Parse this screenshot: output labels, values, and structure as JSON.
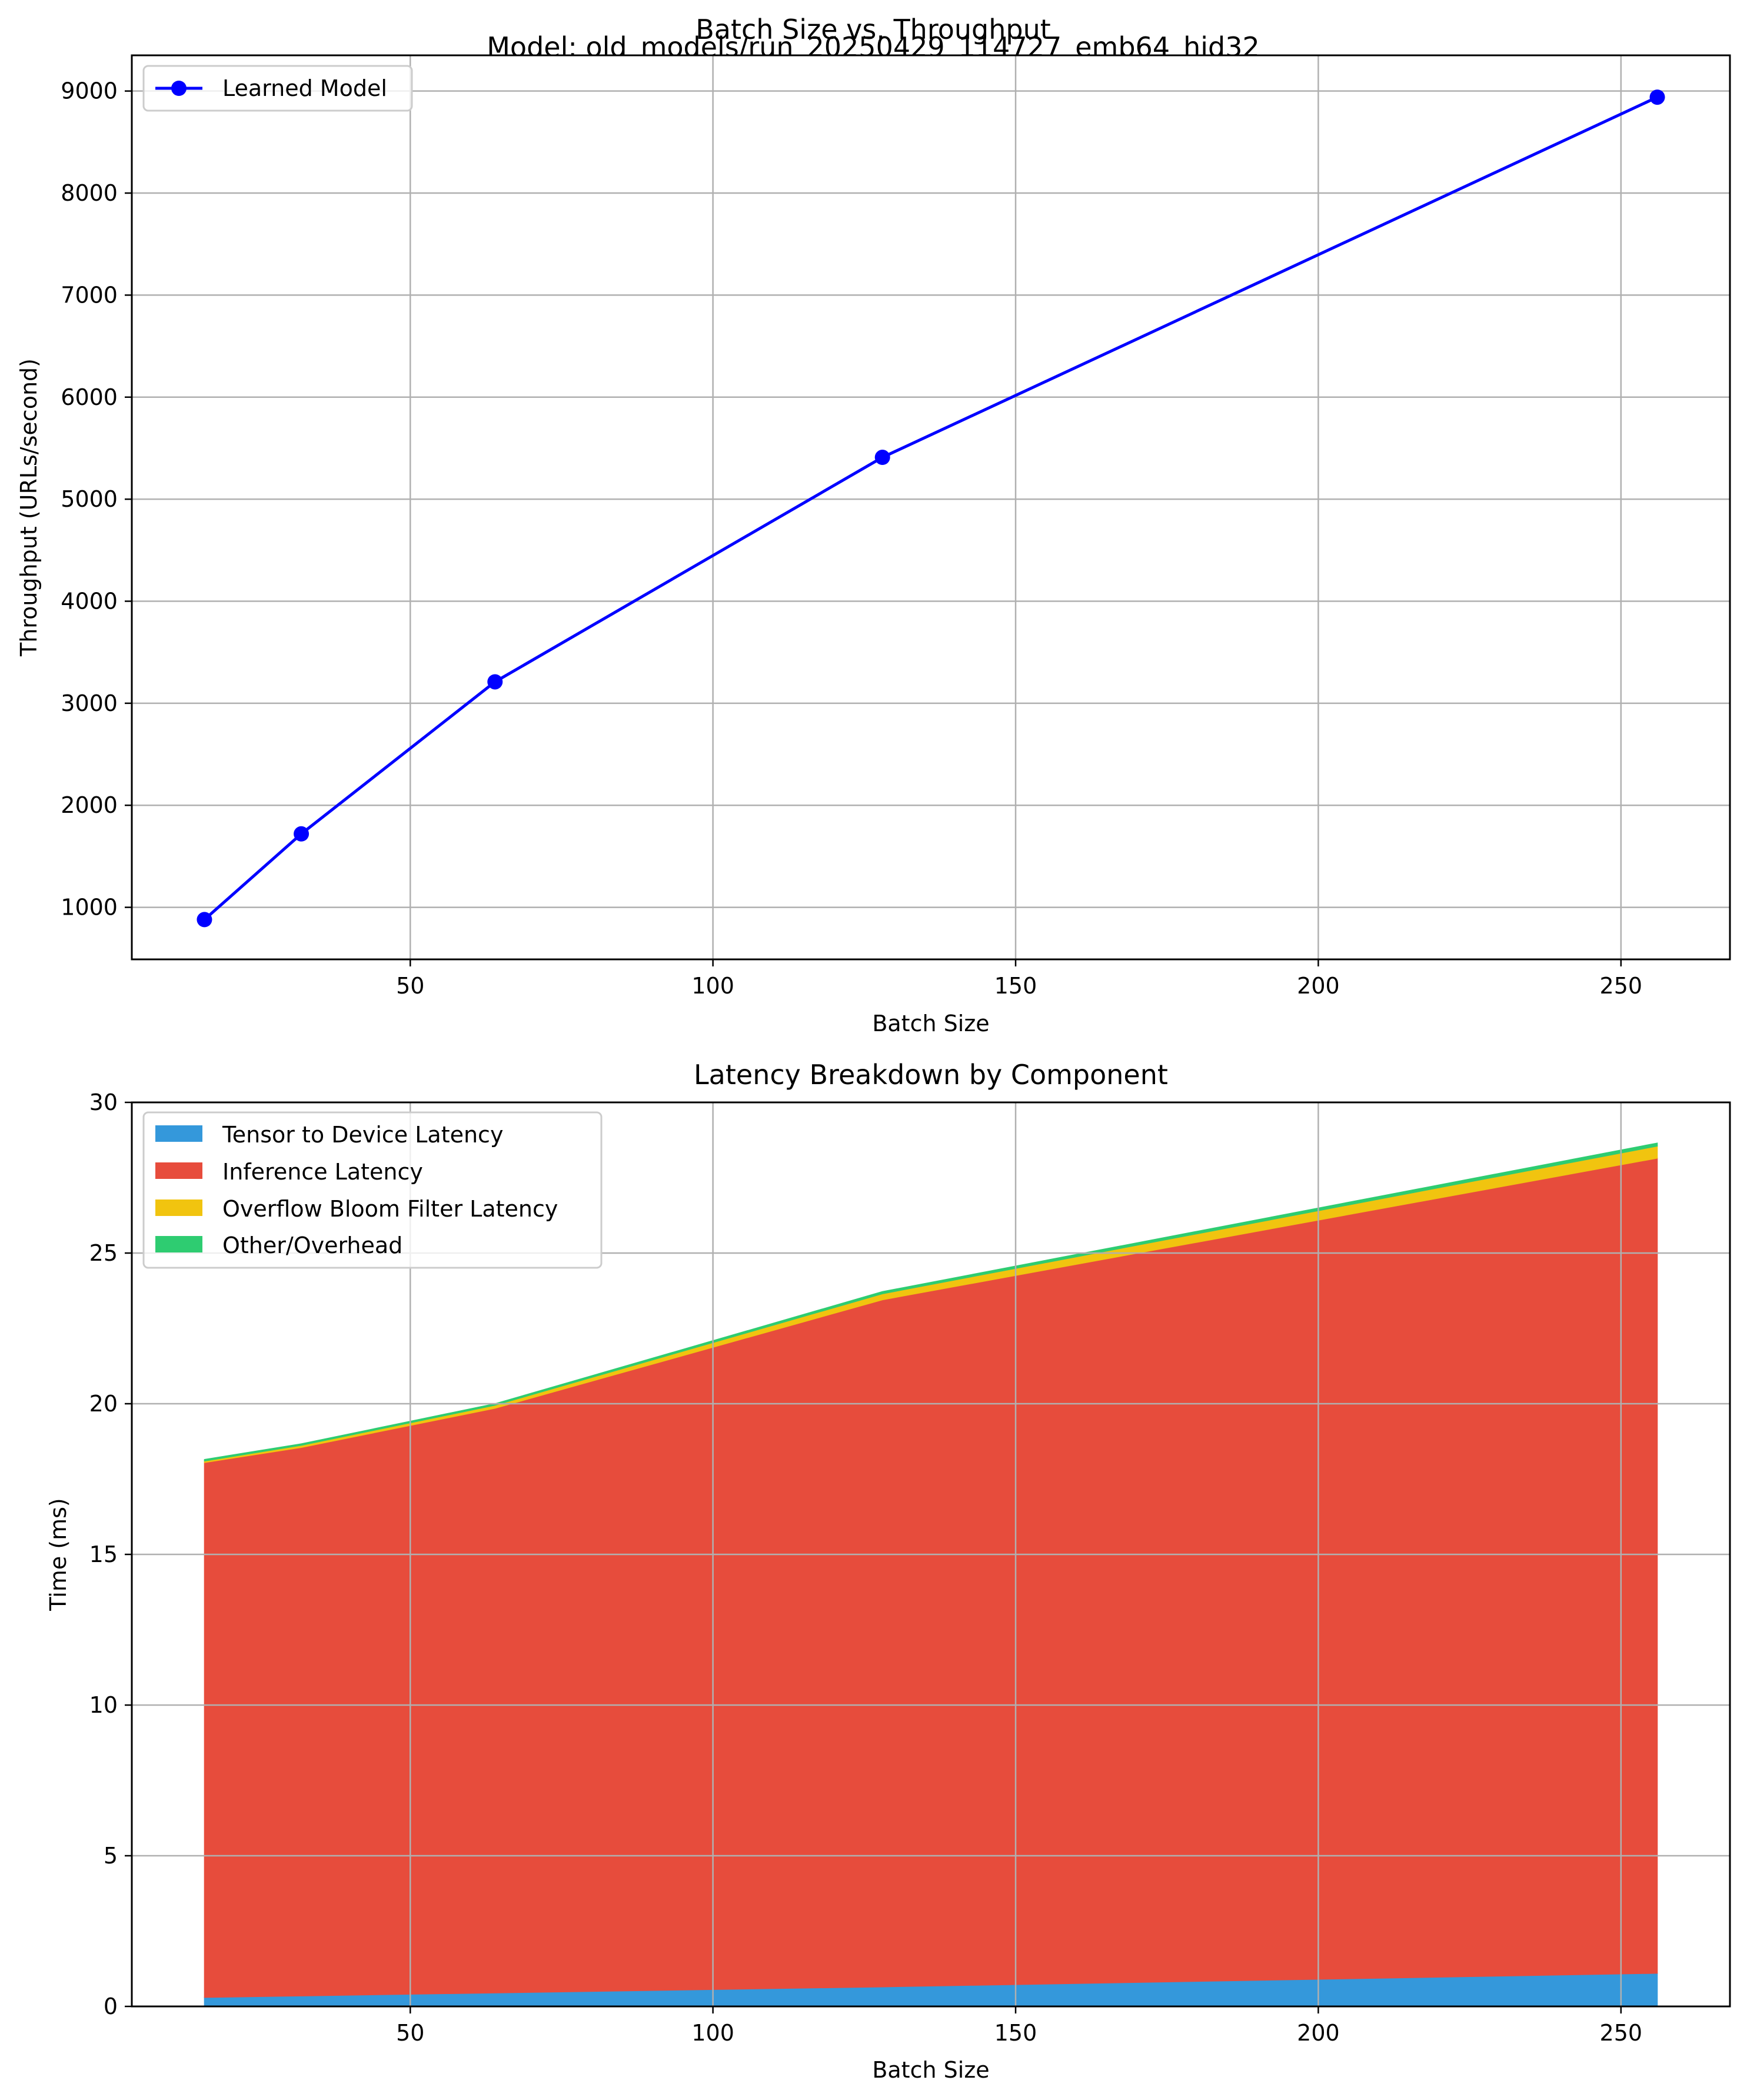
{
  "figure": {
    "title_line1": "Batch Size vs. Throughput",
    "title_line2": "Model: old_models/run_20250429_114727_emb64_hid32"
  },
  "chart_data": [
    {
      "type": "line",
      "title": "",
      "xlabel": "Batch Size",
      "ylabel": "Throughput (URLs/second)",
      "xlim": [
        4,
        268
      ],
      "ylim": [
        490,
        9350
      ],
      "xticks": [
        50,
        100,
        150,
        200,
        250
      ],
      "yticks": [
        1000,
        2000,
        3000,
        4000,
        5000,
        6000,
        7000,
        8000,
        9000
      ],
      "grid": true,
      "legend_position": "top-left",
      "series": [
        {
          "name": "Learned Model",
          "color": "#0000ff",
          "marker": "circle",
          "x": [
            16,
            32,
            64,
            128,
            256
          ],
          "y": [
            880,
            1720,
            3210,
            5410,
            8940
          ]
        }
      ]
    },
    {
      "type": "area",
      "stacked": true,
      "title": "Latency Breakdown by Component",
      "xlabel": "Batch Size",
      "ylabel": "Time (ms)",
      "xlim": [
        4,
        268
      ],
      "ylim": [
        0,
        30
      ],
      "xticks": [
        50,
        100,
        150,
        200,
        250
      ],
      "yticks": [
        0,
        5,
        10,
        15,
        20,
        25,
        30
      ],
      "grid": true,
      "legend_position": "top-left",
      "x": [
        16,
        32,
        64,
        128,
        256
      ],
      "series": [
        {
          "name": "Tensor to Device Latency",
          "color": "#3498db",
          "values": [
            0.3,
            0.35,
            0.45,
            0.65,
            1.1
          ]
        },
        {
          "name": "Inference Latency",
          "color": "#e74c3c",
          "values": [
            17.75,
            18.2,
            19.4,
            22.8,
            27.05
          ]
        },
        {
          "name": "Overflow Bloom Filter Latency",
          "color": "#f1c40f",
          "values": [
            0.05,
            0.07,
            0.1,
            0.2,
            0.4
          ]
        },
        {
          "name": "Other/Overhead",
          "color": "#2ecc71",
          "values": [
            0.05,
            0.05,
            0.05,
            0.07,
            0.1
          ]
        }
      ]
    }
  ]
}
